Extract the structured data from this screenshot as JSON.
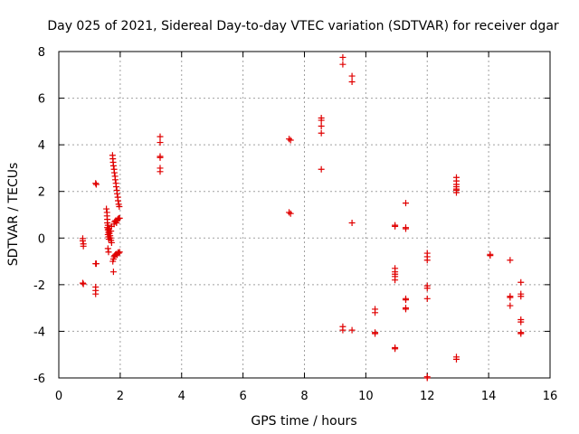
{
  "chart_data": {
    "type": "scatter",
    "title": "Day 025 of 2021, Sidereal Day-to-day VTEC variation (SDTVAR) for receiver dgar",
    "xlabel": "GPS time / hours",
    "ylabel": "SDTVAR / TECUs",
    "xlim": [
      0,
      16
    ],
    "ylim": [
      -6,
      8
    ],
    "xticks": [
      "0",
      "2",
      "4",
      "6",
      "8",
      "10",
      "12",
      "14",
      "16"
    ],
    "yticks": [
      "-6",
      "-4",
      "-2",
      "0",
      "2",
      "4",
      "6",
      "8"
    ],
    "grid": true,
    "marker": "plus",
    "color": "#e00000",
    "series": [
      {
        "name": "SDTVAR",
        "points": [
          [
            0.78,
            -0.02
          ],
          [
            0.78,
            -0.12
          ],
          [
            0.8,
            -0.25
          ],
          [
            0.8,
            -0.35
          ],
          [
            0.78,
            -1.93
          ],
          [
            0.8,
            -1.97
          ],
          [
            1.2,
            2.35
          ],
          [
            1.22,
            2.3
          ],
          [
            1.2,
            -1.1
          ],
          [
            1.22,
            -1.1
          ],
          [
            1.2,
            -2.1
          ],
          [
            1.2,
            -2.25
          ],
          [
            1.2,
            -2.4
          ],
          [
            1.55,
            1.25
          ],
          [
            1.57,
            1.1
          ],
          [
            1.57,
            0.95
          ],
          [
            1.58,
            0.8
          ],
          [
            1.58,
            0.65
          ],
          [
            1.6,
            0.55
          ],
          [
            1.58,
            0.45
          ],
          [
            1.6,
            0.35
          ],
          [
            1.62,
            0.25
          ],
          [
            1.6,
            0.15
          ],
          [
            1.62,
            0.05
          ],
          [
            1.63,
            -0.05
          ],
          [
            1.62,
            0.4
          ],
          [
            1.65,
            0.3
          ],
          [
            1.65,
            0.2
          ],
          [
            1.67,
            0.1
          ],
          [
            1.68,
            0.0
          ],
          [
            1.7,
            -0.1
          ],
          [
            1.7,
            0.3
          ],
          [
            1.72,
            0.5
          ],
          [
            1.72,
            -0.2
          ],
          [
            1.6,
            -0.45
          ],
          [
            1.62,
            -0.6
          ],
          [
            1.75,
            3.55
          ],
          [
            1.76,
            3.4
          ],
          [
            1.77,
            3.25
          ],
          [
            1.78,
            3.1
          ],
          [
            1.8,
            2.95
          ],
          [
            1.81,
            2.8
          ],
          [
            1.83,
            2.65
          ],
          [
            1.84,
            2.5
          ],
          [
            1.86,
            2.35
          ],
          [
            1.87,
            2.2
          ],
          [
            1.89,
            2.05
          ],
          [
            1.9,
            1.9
          ],
          [
            1.92,
            1.75
          ],
          [
            1.93,
            1.6
          ],
          [
            1.95,
            1.45
          ],
          [
            1.97,
            1.35
          ],
          [
            1.8,
            0.6
          ],
          [
            1.82,
            0.7
          ],
          [
            1.85,
            0.75
          ],
          [
            1.88,
            0.65
          ],
          [
            1.92,
            0.8
          ],
          [
            1.95,
            0.85
          ],
          [
            1.98,
            0.85
          ],
          [
            1.78,
            -0.9
          ],
          [
            1.8,
            -0.8
          ],
          [
            1.82,
            -0.75
          ],
          [
            1.85,
            -0.7
          ],
          [
            1.88,
            -0.68
          ],
          [
            1.9,
            -0.72
          ],
          [
            1.93,
            -0.62
          ],
          [
            1.95,
            -0.65
          ],
          [
            1.98,
            -0.6
          ],
          [
            1.76,
            -1.0
          ],
          [
            1.78,
            -1.45
          ],
          [
            3.3,
            4.35
          ],
          [
            3.3,
            4.1
          ],
          [
            3.3,
            3.5
          ],
          [
            3.3,
            3.45
          ],
          [
            3.3,
            3.0
          ],
          [
            3.3,
            2.85
          ],
          [
            7.5,
            4.25
          ],
          [
            7.55,
            4.2
          ],
          [
            7.5,
            1.1
          ],
          [
            7.55,
            1.05
          ],
          [
            8.55,
            5.15
          ],
          [
            8.55,
            5.05
          ],
          [
            8.55,
            4.8
          ],
          [
            8.55,
            4.5
          ],
          [
            8.55,
            2.95
          ],
          [
            9.25,
            7.75
          ],
          [
            9.25,
            7.45
          ],
          [
            9.25,
            -3.8
          ],
          [
            9.25,
            -3.95
          ],
          [
            9.55,
            6.95
          ],
          [
            9.55,
            6.7
          ],
          [
            9.55,
            0.65
          ],
          [
            9.55,
            -3.95
          ],
          [
            10.3,
            -3.05
          ],
          [
            10.3,
            -3.2
          ],
          [
            10.3,
            -4.05
          ],
          [
            10.3,
            -4.1
          ],
          [
            10.95,
            0.55
          ],
          [
            10.95,
            0.5
          ],
          [
            10.95,
            -1.3
          ],
          [
            10.95,
            -1.45
          ],
          [
            10.95,
            -1.55
          ],
          [
            10.95,
            -1.65
          ],
          [
            10.95,
            -1.8
          ],
          [
            10.95,
            -4.7
          ],
          [
            10.95,
            -4.75
          ],
          [
            11.3,
            1.5
          ],
          [
            11.3,
            0.45
          ],
          [
            11.3,
            0.4
          ],
          [
            11.3,
            -2.6
          ],
          [
            11.3,
            -2.65
          ],
          [
            11.3,
            -3.0
          ],
          [
            11.3,
            -3.05
          ],
          [
            12.0,
            -0.65
          ],
          [
            12.0,
            -0.8
          ],
          [
            12.0,
            -0.95
          ],
          [
            12.0,
            -2.05
          ],
          [
            12.0,
            -2.15
          ],
          [
            12.0,
            -2.6
          ],
          [
            12.0,
            -5.95
          ],
          [
            12.0,
            -6.0
          ],
          [
            12.95,
            2.6
          ],
          [
            12.95,
            2.45
          ],
          [
            12.95,
            2.3
          ],
          [
            12.95,
            2.2
          ],
          [
            12.95,
            2.1
          ],
          [
            12.95,
            2.05
          ],
          [
            12.95,
            1.95
          ],
          [
            12.95,
            -5.1
          ],
          [
            12.95,
            -5.2
          ],
          [
            14.05,
            -0.7
          ],
          [
            14.05,
            -0.75
          ],
          [
            14.7,
            -0.95
          ],
          [
            14.7,
            -2.5
          ],
          [
            14.7,
            -2.55
          ],
          [
            14.7,
            -2.9
          ],
          [
            15.05,
            -1.9
          ],
          [
            15.05,
            -2.4
          ],
          [
            15.05,
            -2.5
          ],
          [
            15.05,
            -3.5
          ],
          [
            15.05,
            -3.6
          ],
          [
            15.05,
            -4.05
          ],
          [
            15.05,
            -4.1
          ]
        ]
      }
    ]
  }
}
